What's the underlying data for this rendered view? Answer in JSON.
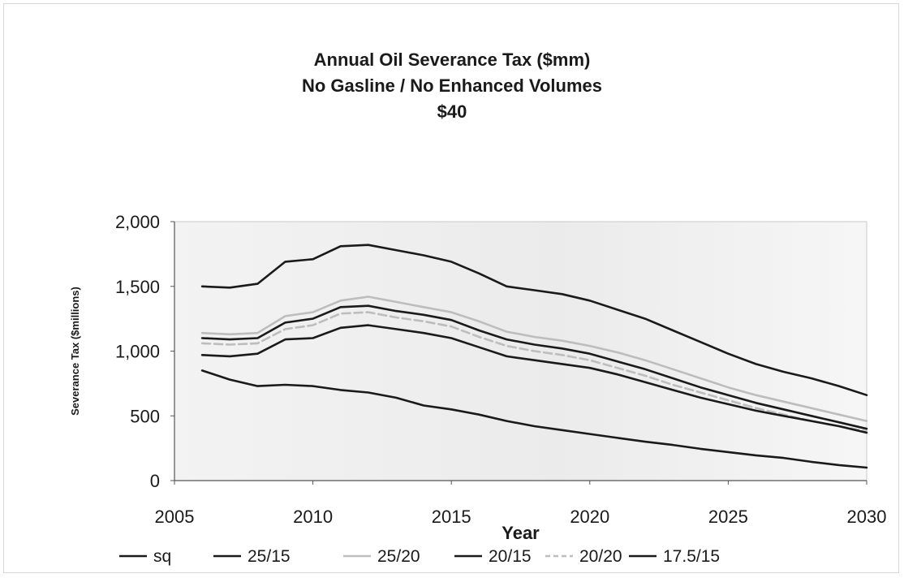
{
  "chart_data": {
    "type": "line",
    "title": [
      "Annual Oil Severance Tax ($mm)",
      "No Gasline / No Enhanced Volumes",
      "$40"
    ],
    "xlabel": "Year",
    "ylabel": "Severance Tax ($millions)",
    "xlim": [
      2005,
      2030
    ],
    "ylim": [
      0,
      2000
    ],
    "xticks": [
      2005,
      2010,
      2015,
      2020,
      2025,
      2030
    ],
    "xtick_labels": [
      "2005",
      "2010",
      "2015",
      "2020",
      "2025",
      "2030"
    ],
    "yticks": [
      0,
      500,
      1000,
      1500,
      2000
    ],
    "ytick_labels": [
      "0",
      "500",
      "1,000",
      "1,500",
      "2,000"
    ],
    "grid": false,
    "legend_position": "bottom",
    "series": [
      {
        "name": "sq",
        "color": "#1a1a1a",
        "dash": "solid",
        "x": [
          2006,
          2007,
          2008,
          2009,
          2010,
          2011,
          2012,
          2013,
          2014,
          2015,
          2016,
          2017,
          2018,
          2019,
          2020,
          2021,
          2022,
          2023,
          2024,
          2025,
          2026,
          2027,
          2028,
          2029,
          2030
        ],
        "y": [
          850,
          780,
          730,
          740,
          730,
          700,
          680,
          640,
          580,
          550,
          510,
          460,
          420,
          390,
          360,
          330,
          300,
          275,
          245,
          220,
          195,
          175,
          145,
          120,
          100
        ]
      },
      {
        "name": "25/15",
        "color": "#1a1a1a",
        "dash": "solid",
        "x": [
          2006,
          2007,
          2008,
          2009,
          2010,
          2011,
          2012,
          2013,
          2014,
          2015,
          2016,
          2017,
          2018,
          2019,
          2020,
          2021,
          2022,
          2023,
          2024,
          2025,
          2026,
          2027,
          2028,
          2029,
          2030
        ],
        "y": [
          1500,
          1490,
          1520,
          1690,
          1710,
          1810,
          1820,
          1780,
          1740,
          1690,
          1600,
          1500,
          1470,
          1440,
          1390,
          1320,
          1250,
          1160,
          1070,
          980,
          900,
          840,
          790,
          730,
          660
        ]
      },
      {
        "name": "25/20",
        "color": "#bdbdbd",
        "dash": "solid",
        "x": [
          2006,
          2007,
          2008,
          2009,
          2010,
          2011,
          2012,
          2013,
          2014,
          2015,
          2016,
          2017,
          2018,
          2019,
          2020,
          2021,
          2022,
          2023,
          2024,
          2025,
          2026,
          2027,
          2028,
          2029,
          2030
        ],
        "y": [
          1140,
          1130,
          1140,
          1270,
          1300,
          1390,
          1420,
          1380,
          1340,
          1300,
          1230,
          1150,
          1110,
          1080,
          1040,
          990,
          930,
          860,
          790,
          720,
          660,
          610,
          560,
          510,
          460
        ]
      },
      {
        "name": "20/15",
        "color": "#1a1a1a",
        "dash": "solid",
        "x": [
          2006,
          2007,
          2008,
          2009,
          2010,
          2011,
          2012,
          2013,
          2014,
          2015,
          2016,
          2017,
          2018,
          2019,
          2020,
          2021,
          2022,
          2023,
          2024,
          2025,
          2026,
          2027,
          2028,
          2029,
          2030
        ],
        "y": [
          1100,
          1090,
          1100,
          1220,
          1250,
          1340,
          1350,
          1310,
          1280,
          1240,
          1160,
          1090,
          1050,
          1020,
          980,
          920,
          860,
          790,
          720,
          660,
          600,
          550,
          500,
          450,
          400
        ]
      },
      {
        "name": "20/20",
        "color": "#bdbdbd",
        "dash": "dashed",
        "x": [
          2006,
          2007,
          2008,
          2009,
          2010,
          2011,
          2012,
          2013,
          2014,
          2015,
          2016,
          2017,
          2018,
          2019,
          2020,
          2021,
          2022,
          2023,
          2024,
          2025,
          2026,
          2027,
          2028,
          2029,
          2030
        ],
        "y": [
          1060,
          1050,
          1060,
          1170,
          1200,
          1290,
          1300,
          1260,
          1230,
          1190,
          1110,
          1040,
          1000,
          970,
          930,
          870,
          810,
          740,
          680,
          620,
          560,
          510,
          460,
          420,
          380
        ]
      },
      {
        "name": "17.5/15",
        "color": "#1a1a1a",
        "dash": "solid",
        "x": [
          2006,
          2007,
          2008,
          2009,
          2010,
          2011,
          2012,
          2013,
          2014,
          2015,
          2016,
          2017,
          2018,
          2019,
          2020,
          2021,
          2022,
          2023,
          2024,
          2025,
          2026,
          2027,
          2028,
          2029,
          2030
        ],
        "y": [
          970,
          960,
          980,
          1090,
          1100,
          1180,
          1200,
          1170,
          1140,
          1100,
          1030,
          960,
          930,
          900,
          870,
          820,
          760,
          700,
          640,
          590,
          540,
          500,
          460,
          420,
          370
        ]
      }
    ],
    "legend_order": [
      "sq",
      "25/15",
      "25/20",
      "20/15",
      "20/20",
      "17.5/15"
    ]
  }
}
